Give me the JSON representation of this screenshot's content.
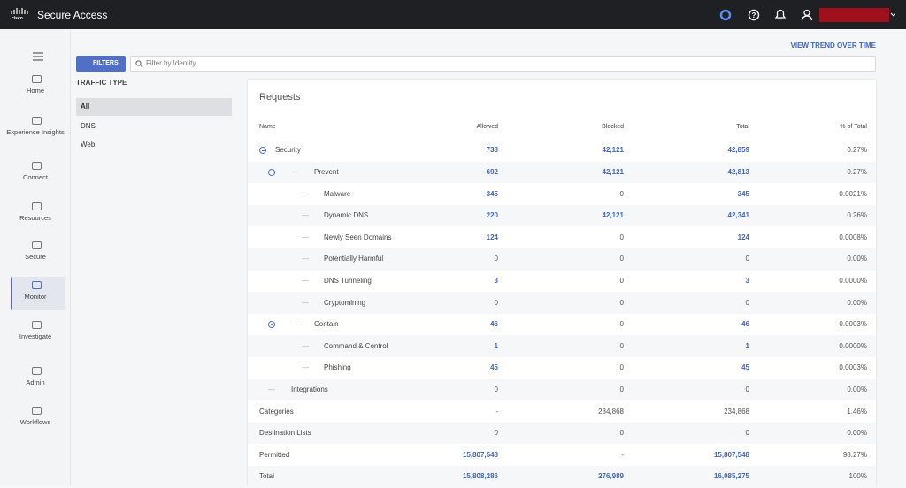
{
  "header": {
    "logo": "cisco",
    "title": "Secure Access"
  },
  "nav": {
    "items": [
      {
        "label": "Home"
      },
      {
        "label": "Experience Insights"
      },
      {
        "label": "Connect"
      },
      {
        "label": "Resources"
      },
      {
        "label": "Secure"
      },
      {
        "label": "Monitor",
        "active": true
      },
      {
        "label": "Investigate"
      },
      {
        "label": "Admin"
      },
      {
        "label": "Workflows"
      }
    ]
  },
  "toolbar": {
    "filters": "FILTERS",
    "search_placeholder": "Filter by Identity",
    "trend_link": "VIEW TREND OVER TIME"
  },
  "traffic_type": {
    "title": "TRAFFIC TYPE",
    "options": [
      {
        "label": "All",
        "selected": true
      },
      {
        "label": "DNS"
      },
      {
        "label": "Web"
      }
    ]
  },
  "table": {
    "title": "Requests",
    "columns": [
      "Name",
      "Allowed",
      "Blocked",
      "Total",
      "% of Total"
    ],
    "rows": [
      {
        "name": "Security",
        "level": 0,
        "toggle": true,
        "cells": [
          "738",
          "42,121",
          "42,859",
          "0.27%"
        ]
      },
      {
        "name": "Prevent",
        "level": 1,
        "toggle": true,
        "cells": [
          "692",
          "42,121",
          "42,813",
          "0.27%"
        ]
      },
      {
        "name": "Malware",
        "level": 2,
        "cells": [
          "345",
          "0",
          "345",
          "0.0021%"
        ]
      },
      {
        "name": "Dynamic DNS",
        "level": 2,
        "cells": [
          "220",
          "42,121",
          "42,341",
          "0.26%"
        ]
      },
      {
        "name": "Newly Seen Domains",
        "level": 2,
        "cells": [
          "124",
          "0",
          "124",
          "0.0008%"
        ]
      },
      {
        "name": "Potentially Harmful",
        "level": 2,
        "cells": [
          "0",
          "0",
          "0",
          "0.00%"
        ]
      },
      {
        "name": "DNS Tunneling",
        "level": 2,
        "cells": [
          "3",
          "0",
          "3",
          "0.0000%"
        ]
      },
      {
        "name": "Cryptomining",
        "level": 2,
        "cells": [
          "0",
          "0",
          "0",
          "0.00%"
        ]
      },
      {
        "name": "Contain",
        "level": 1,
        "toggle": true,
        "cells": [
          "46",
          "0",
          "46",
          "0.0003%"
        ]
      },
      {
        "name": "Command & Control",
        "level": 2,
        "cells": [
          "1",
          "0",
          "1",
          "0.0000%"
        ]
      },
      {
        "name": "Phishing",
        "level": 2,
        "cells": [
          "45",
          "0",
          "45",
          "0.0003%"
        ]
      },
      {
        "name": "Integrations",
        "level": 1,
        "cells": [
          "0",
          "0",
          "0",
          "0.00%"
        ]
      },
      {
        "name": "Categories",
        "cells": [
          "-",
          "234,868",
          "234,868",
          "1.46%"
        ],
        "linked": false
      },
      {
        "name": "Destination Lists",
        "cells": [
          "0",
          "0",
          "0",
          "0.00%"
        ]
      },
      {
        "name": "Permitted",
        "cells": [
          "15,807,548",
          "-",
          "15,807,548",
          "98.27%"
        ]
      },
      {
        "name": "Total",
        "cells": [
          "15,808,286",
          "276,989",
          "16,085,275",
          "100%"
        ]
      }
    ]
  }
}
